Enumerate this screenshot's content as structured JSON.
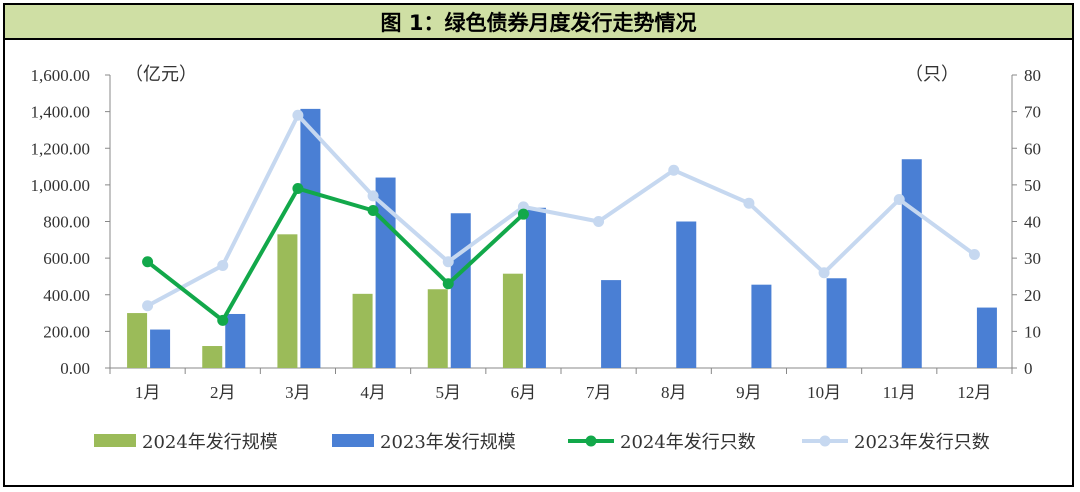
{
  "title": "图 1：绿色债券月度发行走势情况",
  "chart_data": {
    "type": "bar",
    "categories": [
      "1月",
      "2月",
      "3月",
      "4月",
      "5月",
      "6月",
      "7月",
      "8月",
      "9月",
      "10月",
      "11月",
      "12月"
    ],
    "left_unit": "（亿元）",
    "right_unit": "（只）",
    "left_axis": {
      "min": 0,
      "max": 1600,
      "step": 200,
      "ticks": [
        "0.00",
        "200.00",
        "400.00",
        "600.00",
        "800.00",
        "1,000.00",
        "1,200.00",
        "1,400.00",
        "1,600.00"
      ]
    },
    "right_axis": {
      "min": 0,
      "max": 80,
      "step": 10,
      "ticks": [
        "0",
        "10",
        "20",
        "30",
        "40",
        "50",
        "60",
        "70",
        "80"
      ]
    },
    "series": [
      {
        "name": "2024年发行规模",
        "kind": "bar",
        "axis": "left",
        "color": "#9bbb59",
        "values": [
          300,
          120,
          730,
          405,
          430,
          515,
          null,
          null,
          null,
          null,
          null,
          null
        ]
      },
      {
        "name": "2023年发行规模",
        "kind": "bar",
        "axis": "left",
        "color": "#4a7fd4",
        "values": [
          210,
          295,
          1415,
          1040,
          845,
          875,
          480,
          800,
          455,
          490,
          1140,
          330
        ]
      },
      {
        "name": "2024年发行只数",
        "kind": "line",
        "axis": "right",
        "color": "#12a84a",
        "values": [
          29,
          13,
          49,
          43,
          23,
          42,
          null,
          null,
          null,
          null,
          null,
          null
        ]
      },
      {
        "name": "2023年发行只数",
        "kind": "line",
        "axis": "right",
        "color": "#c6d8f0",
        "values": [
          17,
          28,
          69,
          47,
          29,
          44,
          40,
          54,
          45,
          26,
          46,
          31
        ]
      }
    ],
    "grid": false,
    "legend_position": "bottom"
  }
}
